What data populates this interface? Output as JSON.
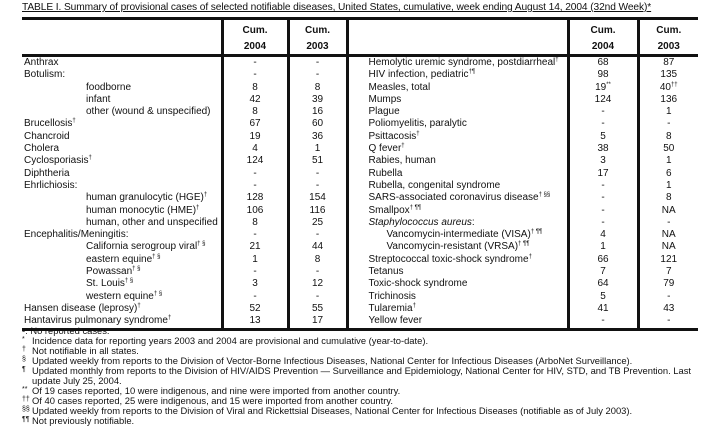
{
  "title": "TABLE I. Summary of provisional cases of selected notifiable diseases, United States, cumulative, week ending August 14, 2004 (32nd Week)*",
  "headers": {
    "cum": "Cum.",
    "y2004": "2004",
    "y2003": "2003"
  },
  "left_rows": [
    {
      "label": "Anthrax",
      "sup": "",
      "indent": 0,
      "v2004": "-",
      "v2003": "-"
    },
    {
      "label": "Botulism:",
      "sup": "",
      "indent": 0,
      "v2004": "-",
      "v2003": "-"
    },
    {
      "label": "foodborne",
      "sup": "",
      "indent": 1,
      "v2004": "8",
      "v2003": "8"
    },
    {
      "label": "infant",
      "sup": "",
      "indent": 1,
      "v2004": "42",
      "v2003": "39"
    },
    {
      "label": "other (wound & unspecified)",
      "sup": "",
      "indent": 1,
      "v2004": "8",
      "v2003": "16"
    },
    {
      "label": "Brucellosis",
      "sup": "†",
      "indent": 0,
      "v2004": "67",
      "v2003": "60"
    },
    {
      "label": "Chancroid",
      "sup": "",
      "indent": 0,
      "v2004": "19",
      "v2003": "36"
    },
    {
      "label": "Cholera",
      "sup": "",
      "indent": 0,
      "v2004": "4",
      "v2003": "1"
    },
    {
      "label": "Cyclosporiasis",
      "sup": "†",
      "indent": 0,
      "v2004": "124",
      "v2003": "51"
    },
    {
      "label": "Diphtheria",
      "sup": "",
      "indent": 0,
      "v2004": "-",
      "v2003": "-"
    },
    {
      "label": "Ehrlichiosis:",
      "sup": "",
      "indent": 0,
      "v2004": "-",
      "v2003": "-"
    },
    {
      "label": "human granulocytic (HGE)",
      "sup": "†",
      "indent": 1,
      "v2004": "128",
      "v2003": "154"
    },
    {
      "label": "human monocytic (HME)",
      "sup": "†",
      "indent": 1,
      "v2004": "106",
      "v2003": "116"
    },
    {
      "label": "human, other and unspecified",
      "sup": "",
      "indent": 1,
      "v2004": "8",
      "v2003": "25"
    },
    {
      "label": "Encephalitis/Meningitis:",
      "sup": "",
      "indent": 0,
      "v2004": "-",
      "v2003": "-"
    },
    {
      "label": "California serogroup viral",
      "sup": "† §",
      "indent": 1,
      "v2004": "21",
      "v2003": "44"
    },
    {
      "label": "eastern equine",
      "sup": "† §",
      "indent": 1,
      "v2004": "1",
      "v2003": "8"
    },
    {
      "label": "Powassan",
      "sup": "† §",
      "indent": 1,
      "v2004": "-",
      "v2003": "-"
    },
    {
      "label": "St. Louis",
      "sup": "† §",
      "indent": 1,
      "v2004": "3",
      "v2003": "12"
    },
    {
      "label": "western equine",
      "sup": "† §",
      "indent": 1,
      "v2004": "-",
      "v2003": "-"
    },
    {
      "label": "Hansen disease (leprosy)",
      "sup": "†",
      "indent": 0,
      "v2004": "52",
      "v2003": "55"
    },
    {
      "label": "Hantavirus pulmonary syndrome",
      "sup": "†",
      "indent": 0,
      "v2004": "13",
      "v2003": "17"
    }
  ],
  "right_rows": [
    {
      "label": "Hemolytic uremic syndrome, postdiarrheal",
      "sup": "†",
      "indent": 2,
      "v2004": "68",
      "v2003": "87"
    },
    {
      "label": "HIV infection, pediatric",
      "sup": "†¶",
      "indent": 2,
      "v2004": "98",
      "v2003": "135"
    },
    {
      "label": "Measles, total",
      "sup": "",
      "indent": 2,
      "v2004": "19",
      "v2004_sup": "**",
      "v2003": "40",
      "v2003_sup": "††",
      "italic": false
    },
    {
      "label": "Mumps",
      "sup": "",
      "indent": 2,
      "v2004": "124",
      "v2003": "136"
    },
    {
      "label": "Plague",
      "sup": "",
      "indent": 2,
      "v2004": "-",
      "v2003": "1"
    },
    {
      "label": "Poliomyelitis, paralytic",
      "sup": "",
      "indent": 2,
      "v2004": "-",
      "v2003": "-"
    },
    {
      "label": "Psittacosis",
      "sup": "†",
      "indent": 2,
      "v2004": "5",
      "v2003": "8"
    },
    {
      "label": "Q fever",
      "sup": "†",
      "indent": 2,
      "v2004": "38",
      "v2003": "50"
    },
    {
      "label": "Rabies, human",
      "sup": "",
      "indent": 2,
      "v2004": "3",
      "v2003": "1"
    },
    {
      "label": "Rubella",
      "sup": "",
      "indent": 2,
      "v2004": "17",
      "v2003": "6"
    },
    {
      "label": "Rubella, congenital syndrome",
      "sup": "",
      "indent": 2,
      "v2004": "-",
      "v2003": "1"
    },
    {
      "label": "SARS-associated coronavirus disease",
      "sup": "† §§",
      "indent": 2,
      "v2004": "-",
      "v2003": "8"
    },
    {
      "label": "Smallpox",
      "sup": "† ¶¶",
      "indent": 2,
      "v2004": "-",
      "v2003": "NA"
    },
    {
      "label": "Staphylococcus aureus",
      "suffix": ":",
      "sup": "",
      "indent": 2,
      "italic": true,
      "v2004": "-",
      "v2003": "-"
    },
    {
      "label": "Vancomycin-intermediate (VISA)",
      "sup": "† ¶¶",
      "indent": 3,
      "v2004": "4",
      "v2003": "NA"
    },
    {
      "label": "Vancomycin-resistant (VRSA)",
      "sup": "† ¶¶",
      "indent": 3,
      "v2004": "1",
      "v2003": "NA"
    },
    {
      "label": "Streptococcal toxic-shock syndrome",
      "sup": "†",
      "indent": 2,
      "v2004": "66",
      "v2003": "121"
    },
    {
      "label": "Tetanus",
      "sup": "",
      "indent": 2,
      "v2004": "7",
      "v2003": "7"
    },
    {
      "label": "Toxic-shock syndrome",
      "sup": "",
      "indent": 2,
      "v2004": "64",
      "v2003": "79"
    },
    {
      "label": "Trichinosis",
      "sup": "",
      "indent": 2,
      "v2004": "5",
      "v2003": "-"
    },
    {
      "label": "Tularemia",
      "sup": "†",
      "indent": 2,
      "v2004": "41",
      "v2003": "43"
    },
    {
      "label": "Yellow fever",
      "sup": "",
      "indent": 2,
      "v2004": "-",
      "v2003": "-"
    }
  ],
  "footnotes": [
    {
      "mark": "",
      "text": "-: No reported cases."
    },
    {
      "mark": "*",
      "text": "Incidence data for reporting years 2003 and 2004 are provisional and cumulative (year-to-date)."
    },
    {
      "mark": "†",
      "text": "Not notifiable in all states."
    },
    {
      "mark": "§",
      "text": "Updated weekly from reports to the Division of Vector-Borne Infectious Diseases, National Center for Infectious Diseases (ArboNet Surveillance)."
    },
    {
      "mark": "¶",
      "text": "Updated monthly from reports to the Division of HIV/AIDS Prevention — Surveillance and Epidemiology, National Center for HIV, STD, and TB Prevention. Last update July 25, 2004."
    },
    {
      "mark": "**",
      "text": "Of 19 cases reported, 10 were indigenous, and nine were imported from another country."
    },
    {
      "mark": "††",
      "text": "Of 40 cases reported, 25 were indigenous, and 15 were imported from another country."
    },
    {
      "mark": "§§",
      "text": "Updated weekly from reports to the Division of Viral and Rickettsial Diseases, National Center for Infectious Diseases (notifiable as of July 2003)."
    },
    {
      "mark": "¶¶",
      "text": "Not previously notifiable."
    }
  ]
}
